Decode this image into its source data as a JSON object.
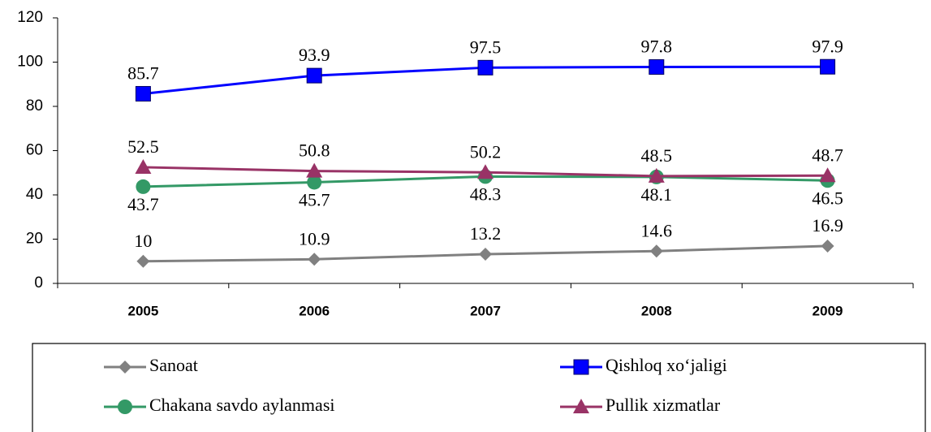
{
  "chart_data": {
    "type": "line",
    "categories": [
      "2005",
      "2006",
      "2007",
      "2008",
      "2009"
    ],
    "ylim": [
      0,
      120
    ],
    "yticks": [
      0,
      20,
      40,
      60,
      80,
      100,
      120
    ],
    "series": [
      {
        "name": "Sanoat",
        "color": "#808080",
        "marker": "diamond",
        "values": [
          10,
          10.9,
          13.2,
          14.6,
          16.9
        ]
      },
      {
        "name": "Qishloq xo‘jaligi",
        "color": "#0000ff",
        "marker": "square",
        "values": [
          85.7,
          93.9,
          97.5,
          97.8,
          97.9
        ]
      },
      {
        "name": "Chakana savdo aylanmasi",
        "color": "#339966",
        "marker": "circle",
        "values": [
          43.7,
          45.7,
          48.3,
          48.1,
          46.5
        ]
      },
      {
        "name": "Pullik xizmatlar",
        "color": "#993366",
        "marker": "triangle",
        "values": [
          52.5,
          50.8,
          50.2,
          48.5,
          48.7
        ]
      }
    ]
  }
}
